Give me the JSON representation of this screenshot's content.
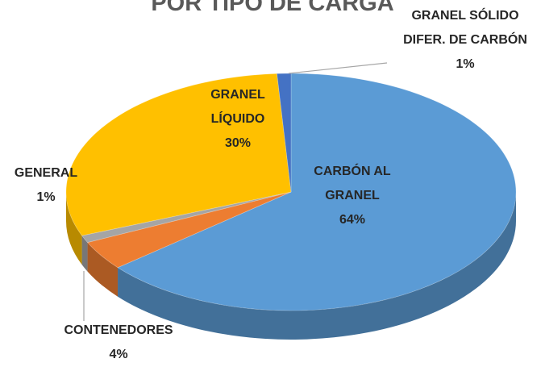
{
  "chart_data": {
    "type": "pie",
    "title": "POR TIPO DE CARGA",
    "categories": [
      "CARBÓN AL GRANEL",
      "CONTENEDORES",
      "GENERAL",
      "GRANEL LÍQUIDO",
      "GRANEL SÓLIDO DIFER. DE CARBÓN"
    ],
    "values": [
      64,
      4,
      1,
      30,
      1
    ],
    "value_labels": [
      "64%",
      "4%",
      "1%",
      "30%",
      "1%"
    ],
    "colors": [
      "#5b9bd5",
      "#ed7d31",
      "#a5a5a5",
      "#ffc000",
      "#4472c4"
    ]
  }
}
